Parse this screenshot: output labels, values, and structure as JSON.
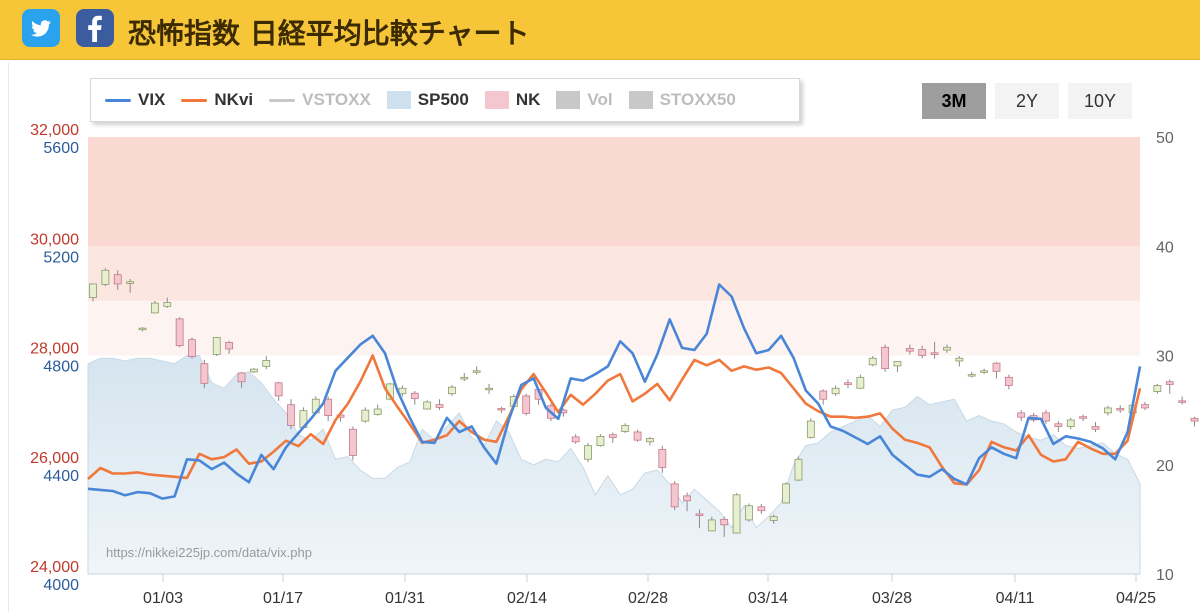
{
  "header": {
    "title": "恐怖指数 日経平均比較チャート",
    "twitter_icon": "twitter-icon",
    "facebook_icon": "facebook-icon"
  },
  "legend": [
    {
      "label": "VIX",
      "color": "#4a86d8",
      "kind": "line",
      "active": true
    },
    {
      "label": "NKvi",
      "color": "#f0783c",
      "kind": "line",
      "active": true
    },
    {
      "label": "VSTOXX",
      "color": "#c8c8c8",
      "kind": "line",
      "active": false
    },
    {
      "label": "SP500",
      "color": "#cfe0ee",
      "kind": "box",
      "active": true
    },
    {
      "label": "NK",
      "color": "#f4c6cf",
      "kind": "box",
      "active": true
    },
    {
      "label": "Vol",
      "color": "#c8c8c8",
      "kind": "box",
      "active": false
    },
    {
      "label": "STOXX50",
      "color": "#c8c8c8",
      "kind": "box",
      "active": false
    }
  ],
  "range_buttons": [
    {
      "label": "3M",
      "active": true
    },
    {
      "label": "2Y",
      "active": false
    },
    {
      "label": "10Y",
      "active": false
    }
  ],
  "source_url": "https://nikkei225jp.com/data/vix.php",
  "colors": {
    "vix": "#4a86d8",
    "nkvi": "#f0783c",
    "sp500_fill": "#d3e3ee",
    "band_high": "#f9d9d1",
    "band_mid": "#fce6e0",
    "band_low": "#fdf3f1",
    "candle_up": "#e6efcf",
    "candle_down": "#f4c6cf"
  },
  "chart_data": {
    "type": "line",
    "x_tick_labels": [
      "01/03",
      "01/17",
      "01/31",
      "02/14",
      "02/28",
      "03/14",
      "03/28",
      "04/11",
      "04/25"
    ],
    "nk_axis": {
      "ticks": [
        "24,000",
        "26,000",
        "28,000",
        "30,000",
        "32,000"
      ],
      "range": [
        24000,
        32000
      ]
    },
    "sp500_axis": {
      "ticks": [
        "4000",
        "4400",
        "4800",
        "5200",
        "5600"
      ],
      "range": [
        4000,
        5600
      ]
    },
    "volatility_axis": {
      "ticks": [
        "10",
        "20",
        "30",
        "40",
        "50"
      ],
      "range": [
        10,
        50
      ]
    },
    "volatility_bands": [
      {
        "from": 30,
        "to": 35
      },
      {
        "from": 35,
        "to": 40
      },
      {
        "from": 40,
        "to": 50
      }
    ],
    "series": [
      {
        "name": "VIX",
        "values": [
          17.8,
          17.7,
          17.6,
          17.2,
          17.5,
          17.4,
          16.9,
          17.1,
          20.5,
          20.4,
          19.6,
          20.2,
          19.2,
          18.4,
          20.9,
          19.6,
          21.6,
          22.9,
          24.2,
          25.6,
          28.6,
          29.8,
          31.0,
          31.8,
          30.2,
          26.8,
          24.3,
          22.1,
          22.0,
          24.3,
          23.0,
          23.5,
          21.6,
          20.1,
          24.1,
          27.3,
          27.9,
          25.2,
          24.2,
          27.9,
          27.7,
          28.3,
          29.0,
          31.3,
          30.2,
          27.6,
          30.1,
          33.3,
          30.7,
          30.5,
          32.0,
          36.5,
          35.4,
          32.5,
          30.2,
          30.5,
          31.8,
          29.8,
          26.8,
          25.6,
          23.5,
          23.1,
          22.5,
          21.9,
          22.6,
          20.9,
          20.0,
          19.1,
          18.9,
          19.6,
          18.7,
          18.2,
          20.6,
          21.6,
          21.0,
          20.6,
          24.3,
          24.2,
          21.9,
          22.6,
          22.4,
          22.1,
          21.5,
          20.5,
          23.0,
          29.0
        ]
      },
      {
        "name": "NKvi",
        "values": [
          18.7,
          19.7,
          19.2,
          19.2,
          19.3,
          19.1,
          19.0,
          18.9,
          18.8,
          21.0,
          20.5,
          20.7,
          21.4,
          20.1,
          20.3,
          21.2,
          22.2,
          21.7,
          22.8,
          21.9,
          24.1,
          25.6,
          27.6,
          30.0,
          27.0,
          25.3,
          23.7,
          22.0,
          22.3,
          22.7,
          24.0,
          23.0,
          22.3,
          22.1,
          24.4,
          26.9,
          28.3,
          26.6,
          24.8,
          26.4,
          25.5,
          26.5,
          27.7,
          28.3,
          25.8,
          26.5,
          27.4,
          25.9,
          27.8,
          29.6,
          29.1,
          29.6,
          28.6,
          29.0,
          28.7,
          28.9,
          28.4,
          27.0,
          25.6,
          24.9,
          24.4,
          24.4,
          24.3,
          24.4,
          24.7,
          23.3,
          22.3,
          22.0,
          21.6,
          19.8,
          18.3,
          18.2,
          19.5,
          22.1,
          21.6,
          21.3,
          22.7,
          20.9,
          20.3,
          20.5,
          22.1,
          21.5,
          21.0,
          21.0,
          22.2,
          27.0
        ]
      },
      {
        "name": "SP500",
        "values": [
          4770,
          4790,
          4790,
          4780,
          4790,
          4790,
          4780,
          4770,
          4800,
          4800,
          4700,
          4680,
          4730,
          4740,
          4700,
          4640,
          4590,
          4510,
          4490,
          4530,
          4420,
          4430,
          4380,
          4350,
          4350,
          4390,
          4410,
          4530,
          4490,
          4540,
          4590,
          4500,
          4470,
          4560,
          4520,
          4420,
          4400,
          4420,
          4410,
          4460,
          4390,
          4290,
          4360,
          4290,
          4310,
          4370,
          4380,
          4330,
          4260,
          4310,
          4270,
          4230,
          4170,
          4250,
          4170,
          4210,
          4260,
          4400,
          4470,
          4480,
          4520,
          4540,
          4560,
          4580,
          4540,
          4600,
          4610,
          4650,
          4620,
          4630,
          4640,
          4560,
          4580,
          4560,
          4550,
          4520,
          4500,
          4490,
          4510,
          4470,
          4460,
          4470,
          4480,
          4440,
          4420,
          4330
        ]
      }
    ],
    "nk_candles": [
      [
        29060,
        29310,
        28990,
        29320
      ],
      [
        29300,
        29560,
        29270,
        29600
      ],
      [
        29480,
        29310,
        29200,
        29560
      ],
      [
        29320,
        29350,
        29150,
        29400
      ],
      [
        28480,
        28500,
        28440,
        28520
      ],
      [
        28780,
        28960,
        28770,
        29000
      ],
      [
        28900,
        28970,
        28870,
        29060
      ],
      [
        28670,
        28180,
        28150,
        28700
      ],
      [
        28290,
        27980,
        27940,
        28330
      ],
      [
        27850,
        27490,
        27400,
        27920
      ],
      [
        28020,
        28330,
        27990,
        28340
      ],
      [
        28240,
        28120,
        28030,
        28270
      ],
      [
        27680,
        27520,
        27410,
        27700
      ],
      [
        27700,
        27750,
        27680,
        27770
      ],
      [
        27800,
        27910,
        27750,
        27990
      ],
      [
        27500,
        27260,
        27170,
        27520
      ],
      [
        27100,
        26720,
        26650,
        27200
      ],
      [
        26680,
        26990,
        26660,
        27050
      ],
      [
        26950,
        27200,
        26920,
        27250
      ],
      [
        27200,
        26900,
        26800,
        27250
      ],
      [
        26910,
        26870,
        26790,
        26980
      ],
      [
        26650,
        26170,
        26080,
        26700
      ],
      [
        26800,
        27000,
        26770,
        27050
      ],
      [
        26920,
        27020,
        26900,
        27100
      ],
      [
        27200,
        27480,
        27190,
        27500
      ],
      [
        27300,
        27400,
        27250,
        27450
      ],
      [
        27310,
        27210,
        27100,
        27350
      ],
      [
        27020,
        27150,
        27010,
        27180
      ],
      [
        27100,
        27050,
        27000,
        27200
      ],
      [
        27300,
        27420,
        27260,
        27460
      ],
      [
        27570,
        27600,
        27530,
        27680
      ],
      [
        27700,
        27720,
        27650,
        27800
      ],
      [
        27380,
        27400,
        27300,
        27480
      ],
      [
        27030,
        27010,
        26950,
        27060
      ],
      [
        27070,
        27250,
        27050,
        27290
      ],
      [
        27260,
        26940,
        26900,
        27300
      ],
      [
        27380,
        27200,
        27100,
        27400
      ],
      [
        27080,
        26850,
        26800,
        27120
      ],
      [
        27000,
        26950,
        26880,
        27030
      ],
      [
        26510,
        26420,
        26380,
        26560
      ],
      [
        26100,
        26350,
        26050,
        26400
      ],
      [
        26350,
        26520,
        26330,
        26560
      ],
      [
        26550,
        26500,
        26400,
        26590
      ],
      [
        26610,
        26720,
        26580,
        26760
      ],
      [
        26600,
        26450,
        26420,
        26640
      ],
      [
        26420,
        26480,
        26350,
        26510
      ],
      [
        26280,
        25950,
        25850,
        26350
      ],
      [
        25650,
        25230,
        25170,
        25700
      ],
      [
        25430,
        25340,
        25150,
        25490
      ],
      [
        25100,
        25080,
        24840,
        25180
      ],
      [
        24790,
        24990,
        24780,
        25050
      ],
      [
        25000,
        24900,
        24680,
        25050
      ],
      [
        24750,
        25450,
        24740,
        25480
      ],
      [
        24990,
        25250,
        24960,
        25290
      ],
      [
        25230,
        25160,
        25100,
        25280
      ],
      [
        24980,
        25050,
        24920,
        25090
      ],
      [
        25300,
        25650,
        25290,
        25680
      ],
      [
        25720,
        26100,
        25700,
        26150
      ],
      [
        26500,
        26800,
        26480,
        26850
      ],
      [
        27350,
        27200,
        27100,
        27380
      ],
      [
        27300,
        27400,
        27260,
        27450
      ],
      [
        27500,
        27470,
        27400,
        27560
      ],
      [
        27400,
        27600,
        27390,
        27650
      ],
      [
        27830,
        27950,
        27800,
        27990
      ],
      [
        28150,
        27760,
        27700,
        28200
      ],
      [
        27810,
        27890,
        27700,
        27900
      ],
      [
        28130,
        28080,
        28020,
        28200
      ],
      [
        28110,
        28000,
        27950,
        28180
      ],
      [
        28050,
        28020,
        27940,
        28250
      ],
      [
        28100,
        28150,
        28050,
        28200
      ],
      [
        27900,
        27950,
        27800,
        27990
      ],
      [
        27640,
        27650,
        27600,
        27700
      ],
      [
        27700,
        27720,
        27660,
        27760
      ],
      [
        27860,
        27710,
        27580,
        27880
      ],
      [
        27600,
        27450,
        27380,
        27650
      ],
      [
        26950,
        26870,
        26800,
        27000
      ],
      [
        26900,
        26820,
        26780,
        26950
      ],
      [
        26950,
        26800,
        26750,
        27000
      ],
      [
        26750,
        26700,
        26600,
        26800
      ],
      [
        26700,
        26820,
        26650,
        26860
      ],
      [
        26880,
        26850,
        26800,
        26920
      ],
      [
        26700,
        26650,
        26600,
        26780
      ],
      [
        26950,
        27040,
        26900,
        27080
      ],
      [
        27030,
        27000,
        26950,
        27090
      ],
      [
        26950,
        27090,
        26930,
        27120
      ],
      [
        27100,
        27040,
        27000,
        27150
      ],
      [
        27340,
        27450,
        27300,
        27480
      ],
      [
        27520,
        27470,
        27300,
        27560
      ],
      [
        27170,
        27150,
        27100,
        27250
      ],
      [
        26850,
        26800,
        26700,
        26880
      ]
    ]
  }
}
